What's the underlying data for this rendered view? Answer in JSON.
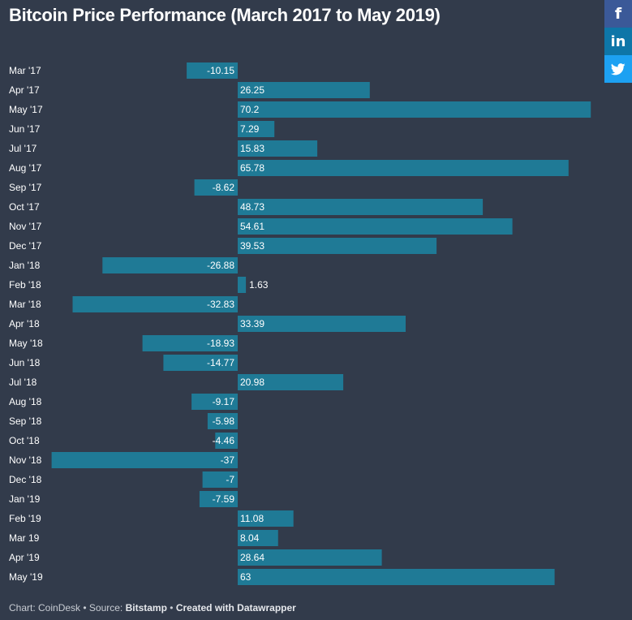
{
  "share": {
    "facebook_label": "f",
    "linkedin_label": "in",
    "twitter_icon": "twitter-bird-icon"
  },
  "footer": {
    "chart_credit": "Chart: CoinDesk",
    "sep1": " • Source: ",
    "source": "Bitstamp",
    "sep2": " • ",
    "created_with": "Created with Datawrapper"
  },
  "colors": {
    "background": "#323b4b",
    "bar": "#1f7a96"
  },
  "chart_data": {
    "type": "bar",
    "orientation": "horizontal",
    "title": "Bitcoin Price Performance (March 2017 to May 2019)",
    "categories": [
      "Mar '17",
      "Apr '17",
      "May '17",
      "Jun '17",
      "Jul '17",
      "Aug '17",
      "Sep '17",
      "Oct '17",
      "Nov '17",
      "Dec '17",
      "Jan '18",
      "Feb '18",
      "Mar '18",
      "Apr '18",
      "May '18",
      "Jun '18",
      "Jul '18",
      "Aug '18",
      "Sep '18",
      "Oct '18",
      "Nov '18",
      "Dec '18",
      "Jan '19",
      "Feb '19",
      "Mar 19",
      "Apr '19",
      "May '19"
    ],
    "values": [
      -10.15,
      26.25,
      70.2,
      7.29,
      15.83,
      65.78,
      -8.62,
      48.73,
      54.61,
      39.53,
      -26.88,
      1.63,
      -32.83,
      33.39,
      -18.93,
      -14.77,
      20.98,
      -9.17,
      -5.98,
      -4.46,
      -37,
      -7,
      -7.59,
      11.08,
      8.04,
      28.64,
      63
    ],
    "value_labels": [
      "-10.15",
      "26.25",
      "70.2",
      "7.29",
      "15.83",
      "65.78",
      "-8.62",
      "48.73",
      "54.61",
      "39.53",
      "-26.88",
      "1.63",
      "-32.83",
      "33.39",
      "-18.93",
      "-14.77",
      "20.98",
      "-9.17",
      "-5.98",
      "-4.46",
      "-37",
      "-7",
      "-7.59",
      "11.08",
      "8.04",
      "28.64",
      "63"
    ],
    "xlim": [
      -37,
      70.2
    ],
    "grid": false,
    "xlabel": "",
    "ylabel": ""
  }
}
